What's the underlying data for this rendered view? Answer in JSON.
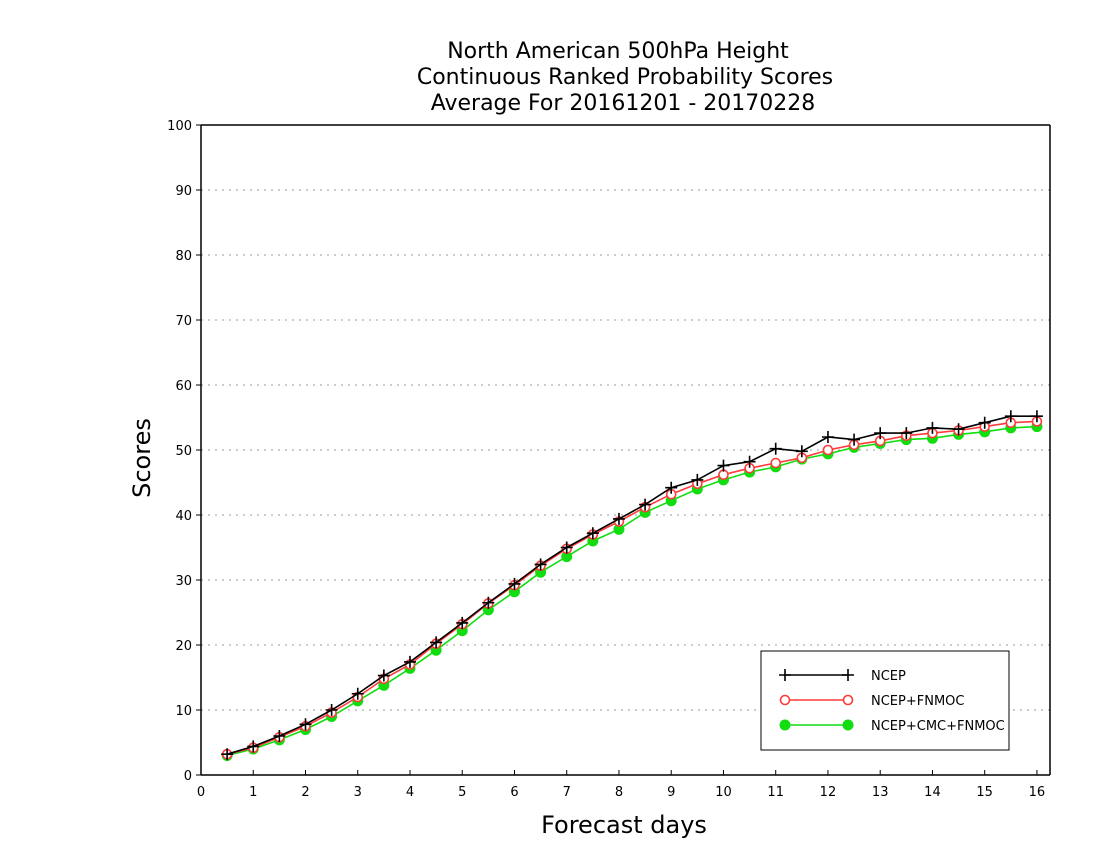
{
  "chart_data": {
    "type": "line",
    "title_lines": [
      "North American 500hPa Height",
      "Continuous Ranked Probability Scores",
      "Average For 20161201 - 20170228"
    ],
    "xlabel": "Forecast days",
    "ylabel": "Scores",
    "xlim": [
      0,
      16.25
    ],
    "ylim": [
      0,
      100
    ],
    "x_ticks": [
      0,
      1,
      2,
      3,
      4,
      5,
      6,
      7,
      8,
      9,
      10,
      11,
      12,
      13,
      14,
      15,
      16
    ],
    "y_ticks": [
      0,
      10,
      20,
      30,
      40,
      50,
      60,
      70,
      80,
      90,
      100
    ],
    "grid": "horizontal dotted",
    "legend_position": "bottom-right",
    "x": [
      0.5,
      1,
      1.5,
      2,
      2.5,
      3,
      3.5,
      4,
      4.5,
      5,
      5.5,
      6,
      6.5,
      7,
      7.5,
      8,
      8.5,
      9,
      9.5,
      10,
      10.5,
      11,
      11.5,
      12,
      12.5,
      13,
      13.5,
      14,
      14.5,
      15,
      15.5,
      16
    ],
    "series": [
      {
        "name": "NCEP",
        "color": "#000000",
        "marker": "plus",
        "values": [
          3.2,
          4.4,
          6.0,
          7.8,
          10.0,
          12.5,
          15.3,
          17.4,
          20.4,
          23.4,
          26.5,
          29.4,
          32.4,
          35.0,
          37.2,
          39.4,
          41.6,
          44.2,
          45.4,
          47.6,
          48.2,
          50.2,
          49.8,
          52.0,
          51.6,
          52.6,
          52.6,
          53.4,
          53.2,
          54.2,
          55.2,
          55.2
        ]
      },
      {
        "name": "NCEP+FNMOC",
        "color": "#ff3b3b",
        "marker": "open-circle",
        "values": [
          3.2,
          4.2,
          5.8,
          7.5,
          9.6,
          12.0,
          14.8,
          17.0,
          20.2,
          23.2,
          26.4,
          29.2,
          32.2,
          34.8,
          37.0,
          39.0,
          41.2,
          43.2,
          44.8,
          46.2,
          47.2,
          48.0,
          48.8,
          50.0,
          50.8,
          51.4,
          52.2,
          52.6,
          53.0,
          53.6,
          54.2,
          54.4
        ]
      },
      {
        "name": "NCEP+CMC+FNMOC",
        "color": "#11dd11",
        "marker": "filled-circle",
        "values": [
          3.0,
          4.0,
          5.4,
          7.0,
          9.0,
          11.4,
          13.8,
          16.4,
          19.2,
          22.2,
          25.4,
          28.2,
          31.2,
          33.6,
          36.0,
          37.8,
          40.4,
          42.2,
          44.0,
          45.4,
          46.6,
          47.4,
          48.6,
          49.4,
          50.4,
          51.0,
          51.6,
          51.8,
          52.4,
          52.8,
          53.4,
          53.6
        ]
      }
    ]
  }
}
